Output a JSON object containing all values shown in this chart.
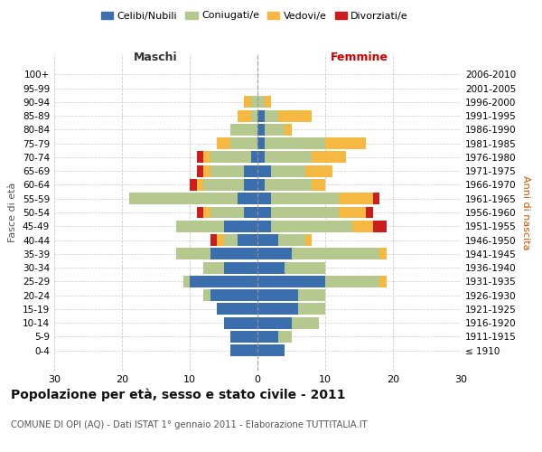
{
  "age_groups": [
    "100+",
    "95-99",
    "90-94",
    "85-89",
    "80-84",
    "75-79",
    "70-74",
    "65-69",
    "60-64",
    "55-59",
    "50-54",
    "45-49",
    "40-44",
    "35-39",
    "30-34",
    "25-29",
    "20-24",
    "15-19",
    "10-14",
    "5-9",
    "0-4"
  ],
  "birth_years": [
    "≤ 1910",
    "1911-1915",
    "1916-1920",
    "1921-1925",
    "1926-1930",
    "1931-1935",
    "1936-1940",
    "1941-1945",
    "1946-1950",
    "1951-1955",
    "1956-1960",
    "1961-1965",
    "1966-1970",
    "1971-1975",
    "1976-1980",
    "1981-1985",
    "1986-1990",
    "1991-1995",
    "1996-2000",
    "2001-2005",
    "2006-2010"
  ],
  "colors": {
    "celibi": "#3a6eac",
    "coniugati": "#b5c98e",
    "vedovi": "#f5b942",
    "divorziati": "#cc1c1c"
  },
  "maschi": {
    "celibi": [
      0,
      0,
      0,
      0,
      0,
      0,
      1,
      2,
      2,
      3,
      2,
      5,
      3,
      7,
      5,
      10,
      7,
      6,
      5,
      4,
      4
    ],
    "coniugati": [
      0,
      0,
      1,
      1,
      4,
      4,
      6,
      5,
      6,
      16,
      5,
      7,
      2,
      5,
      3,
      1,
      1,
      0,
      0,
      0,
      0
    ],
    "vedovi": [
      0,
      0,
      1,
      2,
      0,
      2,
      1,
      1,
      1,
      0,
      1,
      0,
      1,
      0,
      0,
      0,
      0,
      0,
      0,
      0,
      0
    ],
    "divorziati": [
      0,
      0,
      0,
      0,
      0,
      0,
      1,
      1,
      1,
      0,
      1,
      0,
      1,
      0,
      0,
      0,
      0,
      0,
      0,
      0,
      0
    ]
  },
  "femmine": {
    "nubili": [
      0,
      0,
      0,
      1,
      1,
      1,
      1,
      2,
      1,
      2,
      2,
      2,
      3,
      5,
      4,
      10,
      6,
      6,
      5,
      3,
      4
    ],
    "coniugate": [
      0,
      0,
      1,
      2,
      3,
      9,
      7,
      5,
      7,
      10,
      10,
      12,
      4,
      13,
      6,
      8,
      4,
      4,
      4,
      2,
      0
    ],
    "vedove": [
      0,
      0,
      1,
      5,
      1,
      6,
      5,
      4,
      2,
      5,
      4,
      3,
      1,
      1,
      0,
      1,
      0,
      0,
      0,
      0,
      0
    ],
    "divorziate": [
      0,
      0,
      0,
      0,
      0,
      0,
      0,
      0,
      0,
      1,
      1,
      2,
      0,
      0,
      0,
      0,
      0,
      0,
      0,
      0,
      0
    ]
  },
  "title": "Popolazione per età, sesso e stato civile - 2011",
  "subtitle": "COMUNE DI OPI (AQ) - Dati ISTAT 1° gennaio 2011 - Elaborazione TUTTITALIA.IT",
  "xlabel_left": "Maschi",
  "xlabel_right": "Femmine",
  "ylabel_left": "Fasce di età",
  "ylabel_right": "Anni di nascita",
  "xlim": 30,
  "legend_labels": [
    "Celibi/Nubili",
    "Coniugati/e",
    "Vedovi/e",
    "Divorziati/e"
  ],
  "background_color": "#ffffff",
  "grid_color": "#cccccc",
  "femmine_color": "#cc0000"
}
